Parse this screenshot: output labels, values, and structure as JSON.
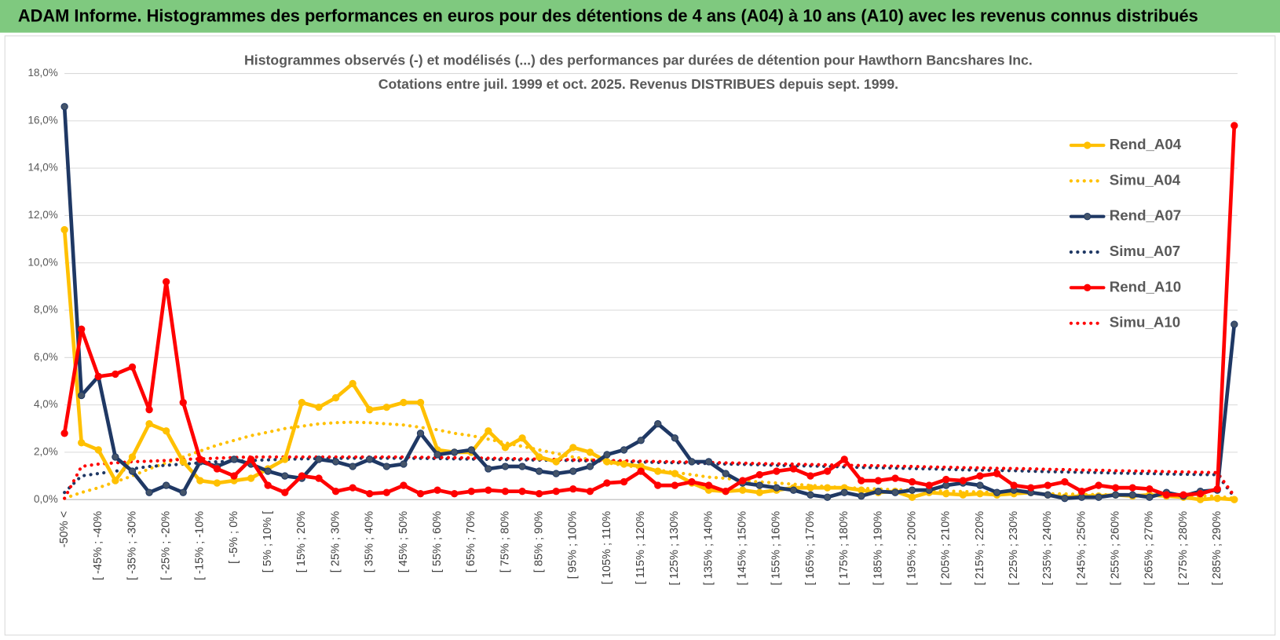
{
  "header": {
    "title": "ADAM Informe. Histogrammes des performances en euros pour des détentions de 4 ans (A04) à 10 ans (A10) avec les revenus connus distribués"
  },
  "chart_data": {
    "type": "line",
    "title": "Histogrammes observés (-) et modélisés (...) des performances par durées de détention pour Hawthorn Bancshares Inc.",
    "subtitle": "Cotations entre juil. 1999 et oct. 2025. Revenus DISTRIBUES depuis sept. 1999.",
    "categories": [
      "-50% <",
      null,
      "[ -45% ; -40%",
      null,
      "[ -35% ; -30%",
      null,
      "[ -25% ; -20%",
      null,
      "[ -15% ; -10%",
      null,
      "[ -5% ; 0%",
      null,
      "[ 5% ; 10% [",
      null,
      "[ 15% ; 20%",
      null,
      "[ 25% ; 30%",
      null,
      "[ 35% ; 40%",
      null,
      "[ 45% ; 50%",
      null,
      "[ 55% ; 60%",
      null,
      "[ 65% ; 70%",
      null,
      "[ 75% ; 80%",
      null,
      "[ 85% ; 90%",
      null,
      "[ 95% ; 100%",
      null,
      "[ 105% ; 110%",
      null,
      "[ 115% ; 120%",
      null,
      "[ 125% ; 130%",
      null,
      "[ 135% ; 140%",
      null,
      "[ 145% ; 150%",
      null,
      "[ 155% ; 160%",
      null,
      "[ 165% ; 170%",
      null,
      "[ 175% ; 180%",
      null,
      "[ 185% ; 190%",
      null,
      "[ 195% ; 200%",
      null,
      "[ 205% ; 210%",
      null,
      "[ 215% ; 220%",
      null,
      "[ 225% ; 230%",
      null,
      "[ 235% ; 240%",
      null,
      "[ 245% ; 250%",
      null,
      "[ 255% ; 260%",
      null,
      "[ 265% ; 270%",
      null,
      "[ 275% ; 280%",
      null,
      "[ 285% ; 290%",
      null
    ],
    "series": [
      {
        "name": "Rend_A04",
        "color": "#ffc000",
        "line_style": "solid",
        "markers": true,
        "values": [
          11.4,
          2.4,
          2.1,
          0.8,
          1.8,
          3.2,
          2.9,
          1.6,
          0.8,
          0.7,
          0.8,
          0.9,
          1.3,
          1.7,
          4.1,
          3.9,
          4.3,
          4.9,
          3.8,
          3.9,
          4.1,
          4.1,
          2.1,
          2.0,
          2.0,
          2.9,
          2.2,
          2.6,
          1.8,
          1.6,
          2.2,
          2.0,
          1.6,
          1.5,
          1.4,
          1.2,
          1.1,
          0.7,
          0.4,
          0.35,
          0.4,
          0.3,
          0.4,
          0.5,
          0.5,
          0.5,
          0.5,
          0.4,
          0.3,
          0.35,
          0.1,
          0.3,
          0.25,
          0.2,
          0.25,
          0.2,
          0.25,
          0.3,
          0.2,
          0.1,
          0.15,
          0.15,
          0.2,
          0.15,
          0.2,
          0.15,
          0.1,
          0,
          0.05,
          0
        ]
      },
      {
        "name": "Simu_A04",
        "color": "#ffc000",
        "line_style": "dotted",
        "markers": false,
        "values": [
          0.05,
          0.3,
          0.5,
          0.75,
          1.0,
          1.3,
          1.55,
          1.8,
          2.05,
          2.3,
          2.5,
          2.7,
          2.85,
          3.0,
          3.1,
          3.2,
          3.25,
          3.27,
          3.25,
          3.2,
          3.15,
          3.05,
          2.95,
          2.8,
          2.7,
          2.55,
          2.4,
          2.25,
          2.1,
          1.95,
          1.8,
          1.7,
          1.55,
          1.45,
          1.35,
          1.25,
          1.15,
          1.05,
          0.95,
          0.9,
          0.8,
          0.75,
          0.7,
          0.65,
          0.6,
          0.55,
          0.5,
          0.48,
          0.45,
          0.42,
          0.4,
          0.38,
          0.36,
          0.34,
          0.32,
          0.3,
          0.28,
          0.27,
          0.25,
          0.24,
          0.22,
          0.21,
          0.2,
          0.19,
          0.18,
          0.17,
          0.16,
          0.15,
          0.14,
          0.05
        ]
      },
      {
        "name": "Rend_A07",
        "color": "#1f3864",
        "line_style": "solid",
        "markers": true,
        "values": [
          16.6,
          4.4,
          5.2,
          1.8,
          1.2,
          0.3,
          0.6,
          0.3,
          1.6,
          1.4,
          1.7,
          1.5,
          1.2,
          1.0,
          0.9,
          1.7,
          1.6,
          1.4,
          1.7,
          1.4,
          1.5,
          2.8,
          1.9,
          2.0,
          2.1,
          1.3,
          1.4,
          1.4,
          1.2,
          1.1,
          1.2,
          1.4,
          1.9,
          2.1,
          2.5,
          3.2,
          2.6,
          1.6,
          1.6,
          1.1,
          0.7,
          0.6,
          0.5,
          0.4,
          0.2,
          0.1,
          0.3,
          0.15,
          0.35,
          0.3,
          0.4,
          0.4,
          0.6,
          0.7,
          0.6,
          0.3,
          0.4,
          0.3,
          0.2,
          0.05,
          0.1,
          0.1,
          0.2,
          0.2,
          0.1,
          0.3,
          0.15,
          0.35,
          0.4,
          7.4
        ]
      },
      {
        "name": "Simu_A07",
        "color": "#1f3864",
        "line_style": "dotted",
        "markers": false,
        "values": [
          0.3,
          1.0,
          1.1,
          1.2,
          1.3,
          1.4,
          1.45,
          1.5,
          1.55,
          1.6,
          1.62,
          1.65,
          1.68,
          1.7,
          1.72,
          1.73,
          1.74,
          1.75,
          1.75,
          1.75,
          1.75,
          1.74,
          1.73,
          1.72,
          1.71,
          1.7,
          1.69,
          1.68,
          1.67,
          1.66,
          1.65,
          1.63,
          1.62,
          1.6,
          1.59,
          1.57,
          1.56,
          1.54,
          1.52,
          1.5,
          1.49,
          1.47,
          1.45,
          1.43,
          1.42,
          1.4,
          1.38,
          1.36,
          1.35,
          1.33,
          1.31,
          1.3,
          1.28,
          1.26,
          1.25,
          1.23,
          1.22,
          1.2,
          1.18,
          1.17,
          1.15,
          1.14,
          1.12,
          1.11,
          1.1,
          1.08,
          1.07,
          1.06,
          1.05,
          0.1
        ]
      },
      {
        "name": "Rend_A10",
        "color": "#ff0000",
        "line_style": "solid",
        "markers": true,
        "values": [
          2.8,
          7.2,
          5.2,
          5.3,
          5.6,
          3.8,
          9.2,
          4.1,
          1.7,
          1.3,
          1.0,
          1.7,
          0.6,
          0.3,
          1.0,
          0.9,
          0.35,
          0.5,
          0.25,
          0.3,
          0.6,
          0.25,
          0.4,
          0.25,
          0.35,
          0.4,
          0.35,
          0.35,
          0.25,
          0.35,
          0.45,
          0.35,
          0.7,
          0.75,
          1.2,
          0.6,
          0.6,
          0.75,
          0.6,
          0.35,
          0.8,
          1.05,
          1.2,
          1.3,
          1.0,
          1.2,
          1.7,
          0.8,
          0.8,
          0.9,
          0.75,
          0.6,
          0.85,
          0.8,
          1.0,
          1.1,
          0.6,
          0.5,
          0.6,
          0.75,
          0.35,
          0.6,
          0.5,
          0.5,
          0.45,
          0.2,
          0.2,
          0.25,
          0.45,
          15.8
        ]
      },
      {
        "name": "Simu_A10",
        "color": "#ff0000",
        "line_style": "dotted",
        "markers": false,
        "values": [
          0.05,
          1.4,
          1.5,
          1.55,
          1.6,
          1.62,
          1.65,
          1.7,
          1.72,
          1.75,
          1.78,
          1.8,
          1.8,
          1.8,
          1.8,
          1.8,
          1.8,
          1.8,
          1.8,
          1.8,
          1.8,
          1.79,
          1.78,
          1.77,
          1.76,
          1.75,
          1.74,
          1.72,
          1.71,
          1.7,
          1.68,
          1.67,
          1.65,
          1.64,
          1.62,
          1.61,
          1.6,
          1.58,
          1.57,
          1.55,
          1.54,
          1.52,
          1.51,
          1.5,
          1.48,
          1.47,
          1.45,
          1.44,
          1.43,
          1.41,
          1.4,
          1.38,
          1.37,
          1.35,
          1.34,
          1.32,
          1.31,
          1.3,
          1.28,
          1.27,
          1.25,
          1.24,
          1.22,
          1.21,
          1.2,
          1.18,
          1.17,
          1.15,
          1.14,
          0.15
        ]
      }
    ],
    "ylim": [
      0,
      18
    ],
    "yticks": [
      {
        "value": 0,
        "label": "0,0%"
      },
      {
        "value": 2,
        "label": "2,0%"
      },
      {
        "value": 4,
        "label": "4,0%"
      },
      {
        "value": 6,
        "label": "6,0%"
      },
      {
        "value": 8,
        "label": "8,0%"
      },
      {
        "value": 10,
        "label": "10,0%"
      },
      {
        "value": 12,
        "label": "12,0%"
      },
      {
        "value": 14,
        "label": "14,0%"
      },
      {
        "value": 16,
        "label": "16,0%"
      },
      {
        "value": 18,
        "label": "18,0%"
      }
    ],
    "grid": true,
    "legend": "right"
  }
}
